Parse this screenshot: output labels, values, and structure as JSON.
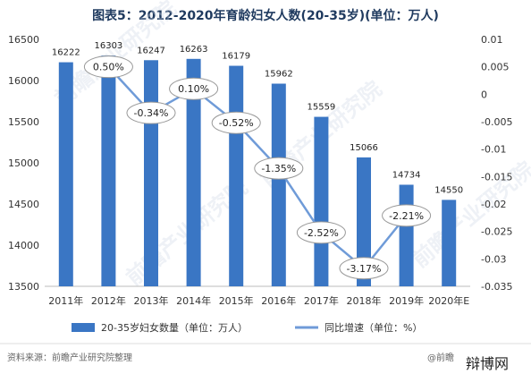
{
  "chart_data": {
    "type": "bar+line",
    "title": "图表5：2012-2020年育龄妇女人数(20-35岁)(单位：万人)",
    "categories": [
      "2011年",
      "2012年",
      "2013年",
      "2014年",
      "2015年",
      "2016年",
      "2017年",
      "2018年",
      "2019年",
      "2020年E"
    ],
    "series": [
      {
        "name": "20-35岁妇女数量（单位：万人）",
        "type": "bar",
        "axis": "left",
        "values": [
          16222,
          16303,
          16247,
          16263,
          16179,
          15962,
          15559,
          15066,
          14734,
          14550
        ]
      },
      {
        "name": "同比增速（单位：%）",
        "type": "line",
        "axis": "right",
        "values": [
          null,
          0.005,
          -0.0034,
          0.001,
          -0.0052,
          -0.0135,
          -0.0252,
          -0.0317,
          -0.0221,
          null
        ],
        "labels": [
          null,
          "0.50%",
          "-0.34%",
          "0.10%",
          "-0.52%",
          "-1.35%",
          "-2.52%",
          "-3.17%",
          "-2.21%",
          null
        ]
      }
    ],
    "y_left": {
      "min": 13500,
      "max": 16500,
      "ticks": [
        "13500",
        "14000",
        "14500",
        "15000",
        "15500",
        "16000",
        "16500"
      ]
    },
    "y_right": {
      "min": -0.035,
      "max": 0.01,
      "ticks": [
        "0.01",
        "0.005",
        "0",
        "-0.005",
        "-0.01",
        "-0.015",
        "-0.02",
        "-0.025",
        "-0.03",
        "-0.035"
      ]
    },
    "legend_position": "bottom",
    "colors": {
      "bar": "#3a76c4",
      "line": "#6f9bd8",
      "title": "#1f3a5f"
    }
  },
  "source_text": "资料来源：前瞻产业研究院整理",
  "source_brand": "@前瞻",
  "corner_text": "辩博网"
}
